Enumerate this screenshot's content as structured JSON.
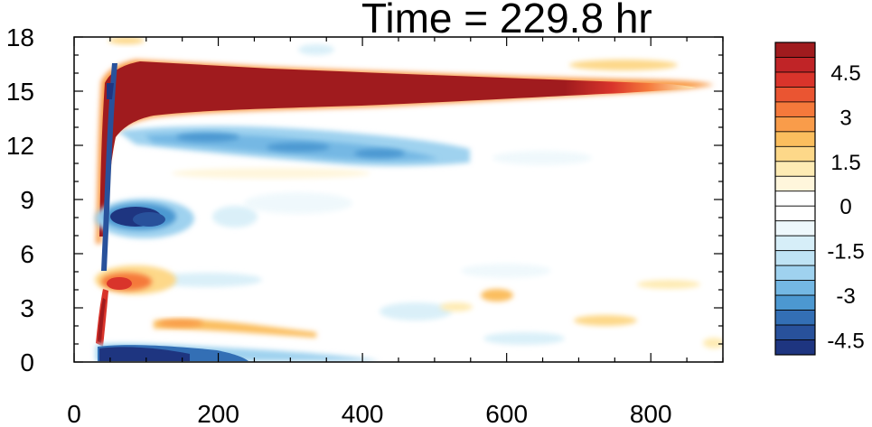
{
  "chart_data": {
    "type": "heatmap",
    "title": "Time = 229.8 hr",
    "xlabel": "",
    "ylabel": "",
    "xlim": [
      0,
      900
    ],
    "ylim": [
      0,
      18
    ],
    "x_ticks": [
      0,
      200,
      400,
      600,
      800
    ],
    "y_ticks": [
      0,
      3,
      6,
      9,
      12,
      15,
      18
    ],
    "colorbar": {
      "levels": [
        -5.5,
        -5,
        -4.5,
        -4,
        -3.5,
        -3,
        -2.5,
        -2,
        -1.5,
        -1,
        -0.5,
        0,
        0.5,
        1,
        1.5,
        2,
        2.5,
        3,
        3.5,
        4,
        4.5,
        5,
        5.5
      ],
      "labeled_values": [
        "4.5",
        "3",
        "1.5",
        "0",
        "-1.5",
        "-3",
        "-4.5"
      ],
      "colors_top_to_bottom": [
        "#a01b1e",
        "#c02427",
        "#d9342b",
        "#ea5532",
        "#f5793b",
        "#f99c4a",
        "#fbbe5e",
        "#fdd889",
        "#feebb4",
        "#fff6dc",
        "#ffffff",
        "#ffffff",
        "#eef8fc",
        "#d6eef8",
        "#bfe3f4",
        "#9fd2ef",
        "#74b8e4",
        "#4c98d1",
        "#336fb5",
        "#28519b",
        "#1e3580"
      ]
    },
    "features": [
      {
        "label": "positive band",
        "x_range": [
          60,
          850
        ],
        "y_center": 15.2,
        "max_value": 5.5
      },
      {
        "label": "negative band",
        "x_range": [
          100,
          500
        ],
        "y_center": 12.3,
        "min_value": -3.5
      },
      {
        "label": "negative blob",
        "x_range": [
          50,
          130
        ],
        "y_center": 8.2,
        "min_value": -5.5
      },
      {
        "label": "positive blob",
        "x_range": [
          40,
          110
        ],
        "y_center": 4.2,
        "max_value": 4
      },
      {
        "label": "negative surface band",
        "x_range": [
          30,
          400
        ],
        "y_center": 0.6,
        "min_value": -5.5
      },
      {
        "label": "positive surface patch",
        "x_range": [
          20,
          55
        ],
        "y_center": 2.4,
        "max_value": 5
      }
    ]
  }
}
